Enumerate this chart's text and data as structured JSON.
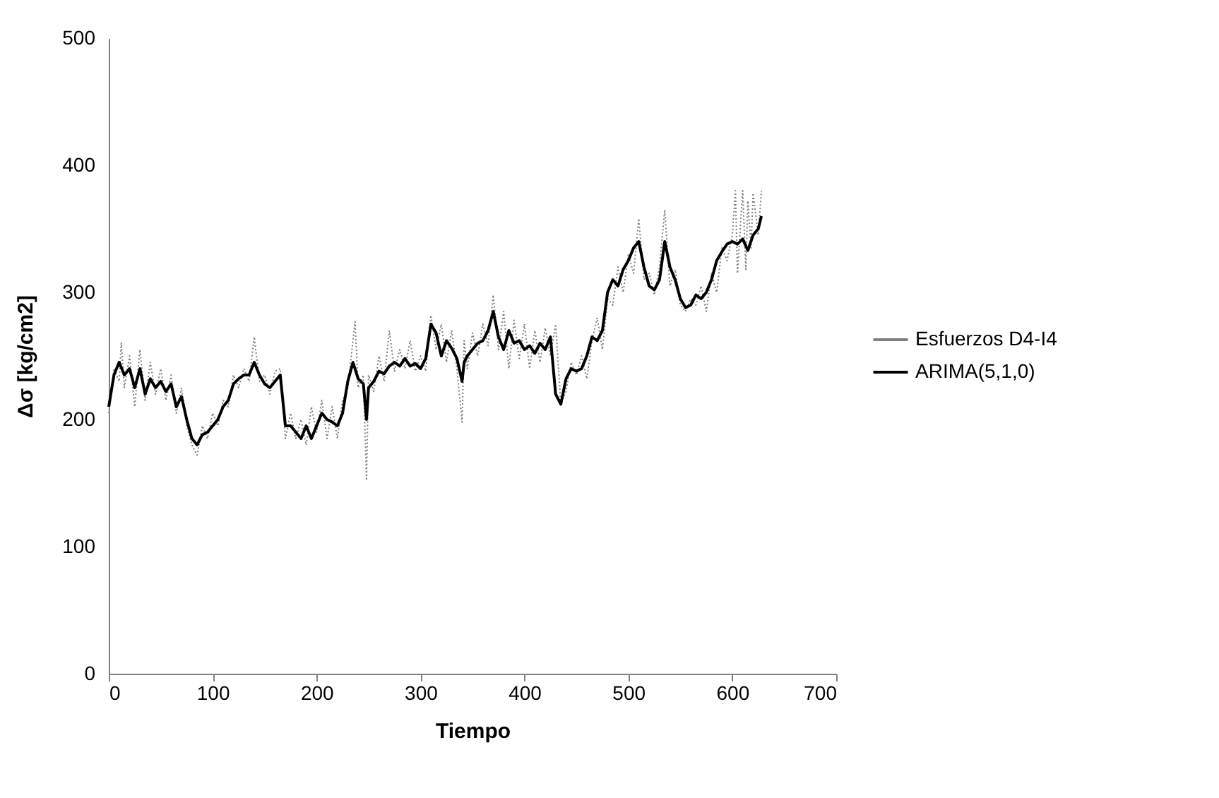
{
  "chart_data": {
    "type": "line",
    "xlabel": "Tiempo",
    "ylabel": "Δσ  [kg/cm2]",
    "xlim": [
      0,
      700
    ],
    "xticks": [
      0,
      100,
      200,
      300,
      400,
      500,
      600,
      700
    ],
    "ylim": [
      0,
      500
    ],
    "yticks": [
      0,
      100,
      200,
      300,
      400,
      500
    ],
    "grid": false,
    "legend": "right",
    "marker": "none",
    "series": [
      {
        "name": "Esfuerzos D4-I4",
        "color": "#7f7f7f",
        "line_style": "dotted",
        "x": [
          0,
          5,
          10,
          12,
          15,
          20,
          25,
          30,
          35,
          40,
          45,
          50,
          55,
          60,
          65,
          70,
          75,
          80,
          85,
          90,
          95,
          100,
          105,
          110,
          115,
          120,
          125,
          130,
          135,
          140,
          145,
          150,
          155,
          160,
          165,
          170,
          175,
          180,
          185,
          190,
          195,
          200,
          205,
          210,
          215,
          220,
          225,
          230,
          237,
          240,
          245,
          248,
          250,
          255,
          260,
          265,
          270,
          275,
          280,
          285,
          290,
          295,
          300,
          305,
          310,
          315,
          320,
          325,
          330,
          335,
          340,
          342,
          345,
          350,
          355,
          360,
          365,
          370,
          375,
          380,
          385,
          390,
          395,
          400,
          405,
          410,
          415,
          420,
          425,
          430,
          435,
          440,
          445,
          450,
          455,
          460,
          465,
          470,
          475,
          480,
          485,
          490,
          495,
          500,
          505,
          510,
          515,
          520,
          525,
          530,
          535,
          540,
          545,
          550,
          555,
          560,
          565,
          570,
          575,
          580,
          585,
          590,
          595,
          600,
          603,
          605,
          610,
          613,
          615,
          618,
          620,
          625,
          628
        ],
        "values": [
          205,
          240,
          230,
          260,
          225,
          250,
          210,
          255,
          215,
          245,
          220,
          240,
          215,
          235,
          205,
          225,
          195,
          180,
          172,
          195,
          185,
          205,
          195,
          215,
          210,
          235,
          225,
          240,
          230,
          265,
          230,
          235,
          220,
          238,
          240,
          185,
          205,
          185,
          200,
          180,
          210,
          190,
          215,
          185,
          210,
          185,
          215,
          225,
          277,
          225,
          235,
          152,
          235,
          222,
          250,
          230,
          270,
          238,
          255,
          240,
          262,
          238,
          250,
          238,
          282,
          255,
          275,
          245,
          270,
          240,
          198,
          262,
          240,
          268,
          250,
          275,
          258,
          298,
          255,
          285,
          240,
          278,
          248,
          275,
          240,
          270,
          245,
          272,
          250,
          275,
          212,
          222,
          245,
          235,
          250,
          232,
          262,
          280,
          255,
          295,
          290,
          320,
          300,
          330,
          315,
          358,
          310,
          315,
          298,
          320,
          365,
          305,
          318,
          290,
          285,
          295,
          290,
          305,
          285,
          315,
          300,
          335,
          325,
          345,
          380,
          315,
          380,
          318,
          372,
          335,
          378,
          345,
          380
        ]
      },
      {
        "name": "ARIMA(5,1,0)",
        "color": "#000000",
        "line_style": "solid",
        "x": [
          0,
          5,
          10,
          15,
          20,
          25,
          30,
          35,
          40,
          45,
          50,
          55,
          60,
          65,
          70,
          75,
          80,
          85,
          90,
          95,
          100,
          105,
          110,
          115,
          120,
          125,
          130,
          135,
          140,
          145,
          150,
          155,
          160,
          165,
          170,
          175,
          180,
          185,
          190,
          195,
          200,
          205,
          210,
          215,
          220,
          225,
          230,
          235,
          240,
          245,
          248,
          250,
          255,
          260,
          265,
          270,
          275,
          280,
          285,
          290,
          295,
          300,
          305,
          310,
          315,
          320,
          325,
          330,
          335,
          340,
          342,
          345,
          350,
          355,
          360,
          365,
          370,
          375,
          380,
          385,
          390,
          395,
          400,
          405,
          410,
          415,
          420,
          425,
          430,
          435,
          440,
          445,
          450,
          455,
          460,
          465,
          470,
          475,
          480,
          485,
          490,
          495,
          500,
          505,
          510,
          515,
          520,
          525,
          530,
          535,
          540,
          545,
          550,
          555,
          560,
          565,
          570,
          575,
          580,
          585,
          590,
          595,
          600,
          605,
          610,
          615,
          620,
          625,
          628
        ],
        "values": [
          210,
          235,
          245,
          235,
          240,
          225,
          240,
          220,
          232,
          225,
          230,
          222,
          228,
          210,
          218,
          200,
          185,
          180,
          188,
          190,
          195,
          200,
          210,
          215,
          228,
          232,
          235,
          235,
          245,
          235,
          228,
          225,
          230,
          235,
          195,
          195,
          190,
          185,
          195,
          185,
          195,
          205,
          200,
          198,
          195,
          205,
          230,
          245,
          232,
          228,
          200,
          225,
          230,
          238,
          236,
          242,
          245,
          242,
          248,
          242,
          244,
          240,
          248,
          275,
          268,
          250,
          262,
          256,
          248,
          230,
          245,
          250,
          255,
          260,
          262,
          270,
          285,
          265,
          255,
          270,
          260,
          262,
          255,
          258,
          252,
          260,
          255,
          265,
          220,
          212,
          232,
          240,
          238,
          240,
          250,
          265,
          262,
          270,
          300,
          310,
          305,
          318,
          325,
          335,
          340,
          320,
          305,
          302,
          310,
          340,
          320,
          310,
          295,
          288,
          290,
          298,
          295,
          300,
          310,
          325,
          332,
          338,
          340,
          338,
          342,
          333,
          345,
          350,
          360
        ]
      }
    ]
  }
}
